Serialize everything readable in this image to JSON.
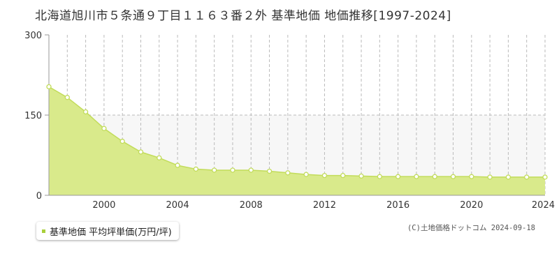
{
  "colors": {
    "fill": "#d9ea8b",
    "line": "#c2dc5a",
    "marker_fill": "#ffffff",
    "legend_swatch": "#a9cf3a",
    "grid": "#bbbbbb",
    "band": "#f7f7f7",
    "axis": "#999999"
  },
  "legend_label": "基準地価 平均坪単価(万円/坪)",
  "credit": "(C)土地価格ドットコム 2024-09-18",
  "chart_data": {
    "type": "area",
    "title": "北海道旭川市５条通９丁目１１６３番２外 基準地価 地価推移[1997-2024]",
    "xlabel": "",
    "ylabel": "",
    "xlim": [
      1997,
      2024
    ],
    "ylim": [
      0,
      300
    ],
    "x_ticks": [
      2000,
      2004,
      2008,
      2012,
      2016,
      2020,
      2024
    ],
    "y_ticks": [
      0,
      150,
      300
    ],
    "grid": true,
    "legend_position": "bottom-left",
    "series": [
      {
        "name": "基準地価 平均坪単価(万円/坪)",
        "x": [
          1997,
          1998,
          1999,
          2000,
          2001,
          2002,
          2003,
          2004,
          2005,
          2006,
          2007,
          2008,
          2009,
          2010,
          2011,
          2012,
          2013,
          2014,
          2015,
          2016,
          2017,
          2018,
          2019,
          2020,
          2021,
          2022,
          2023,
          2024
        ],
        "values": [
          203,
          183,
          156,
          125,
          101,
          81,
          70,
          56,
          49,
          47,
          47,
          47,
          45,
          42,
          39,
          37,
          37,
          36,
          35,
          35,
          35,
          35,
          35,
          35,
          34,
          34,
          34,
          34
        ]
      }
    ]
  }
}
